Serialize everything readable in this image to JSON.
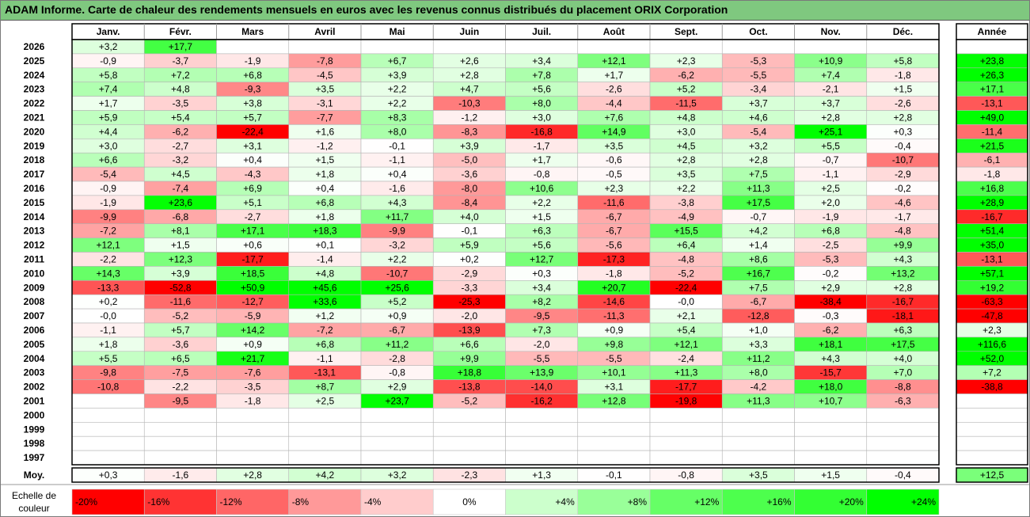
{
  "title": "ADAM Informe. Carte de chaleur des rendements mensuels en euros avec les revenus connus distribués du placement ORIX Corporation",
  "chart_data": {
    "type": "heatmap",
    "months": [
      "Janv.",
      "Févr.",
      "Mars",
      "Avril",
      "Mai",
      "Juin",
      "Juil.",
      "Août",
      "Sept.",
      "Oct.",
      "Nov.",
      "Déc."
    ],
    "year_header": "Année",
    "rows": [
      {
        "year": "2026",
        "values": [
          "+3,2",
          "+17,7",
          "",
          "",
          "",
          "",
          "",
          "",
          "",
          "",
          "",
          ""
        ],
        "annual": ""
      },
      {
        "year": "2025",
        "values": [
          "-0,9",
          "-3,7",
          "-1,9",
          "-7,8",
          "+6,7",
          "+2,6",
          "+3,4",
          "+12,1",
          "+2,3",
          "-5,3",
          "+10,9",
          "+5,8"
        ],
        "annual": "+23,8"
      },
      {
        "year": "2024",
        "values": [
          "+5,8",
          "+7,2",
          "+6,8",
          "-4,5",
          "+3,9",
          "+2,8",
          "+7,8",
          "+1,7",
          "-6,2",
          "-5,5",
          "+7,4",
          "-1,8"
        ],
        "annual": "+26,3"
      },
      {
        "year": "2023",
        "values": [
          "+7,4",
          "+4,8",
          "-9,3",
          "+3,5",
          "+2,2",
          "+4,7",
          "+5,6",
          "-2,6",
          "+5,2",
          "-3,4",
          "-2,1",
          "+1,5"
        ],
        "annual": "+17,1"
      },
      {
        "year": "2022",
        "values": [
          "+1,7",
          "-3,5",
          "+3,8",
          "-3,1",
          "+2,2",
          "-10,3",
          "+8,0",
          "-4,4",
          "-11,5",
          "+3,7",
          "+3,7",
          "-2,6"
        ],
        "annual": "-13,1"
      },
      {
        "year": "2021",
        "values": [
          "+5,9",
          "+5,4",
          "+5,7",
          "-7,7",
          "+8,3",
          "-1,2",
          "+3,0",
          "+7,6",
          "+4,8",
          "+4,6",
          "+2,8",
          "+2,8"
        ],
        "annual": "+49,0"
      },
      {
        "year": "2020",
        "values": [
          "+4,4",
          "-6,2",
          "-22,4",
          "+1,6",
          "+8,0",
          "-8,3",
          "-16,8",
          "+14,9",
          "+3,0",
          "-5,4",
          "+25,1",
          "+0,3"
        ],
        "annual": "-11,4"
      },
      {
        "year": "2019",
        "values": [
          "+3,0",
          "-2,7",
          "+3,1",
          "-1,2",
          "-0,1",
          "+3,9",
          "-1,7",
          "+3,5",
          "+4,5",
          "+3,2",
          "+5,5",
          "-0,4"
        ],
        "annual": "+21,5"
      },
      {
        "year": "2018",
        "values": [
          "+6,6",
          "-3,2",
          "+0,4",
          "+1,5",
          "-1,1",
          "-5,0",
          "+1,7",
          "-0,6",
          "+2,8",
          "+2,8",
          "-0,7",
          "-10,7"
        ],
        "annual": "-6,1"
      },
      {
        "year": "2017",
        "values": [
          "-5,4",
          "+4,5",
          "-4,3",
          "+1,8",
          "+0,4",
          "-3,6",
          "-0,8",
          "-0,5",
          "+3,5",
          "+7,5",
          "-1,1",
          "-2,9"
        ],
        "annual": "-1,8"
      },
      {
        "year": "2016",
        "values": [
          "-0,9",
          "-7,4",
          "+6,9",
          "+0,4",
          "-1,6",
          "-8,0",
          "+10,6",
          "+2,3",
          "+2,2",
          "+11,3",
          "+2,5",
          "-0,2"
        ],
        "annual": "+16,8"
      },
      {
        "year": "2015",
        "values": [
          "-1,9",
          "+23,6",
          "+5,1",
          "+6,8",
          "+4,3",
          "-8,4",
          "+2,2",
          "-11,6",
          "-3,8",
          "+17,5",
          "+2,0",
          "-4,6"
        ],
        "annual": "+28,9"
      },
      {
        "year": "2014",
        "values": [
          "-9,9",
          "-6,8",
          "-2,7",
          "+1,8",
          "+11,7",
          "+4,0",
          "+1,5",
          "-6,7",
          "-4,9",
          "-0,7",
          "-1,9",
          "-1,7"
        ],
        "annual": "-16,7"
      },
      {
        "year": "2013",
        "values": [
          "-7,2",
          "+8,1",
          "+17,1",
          "+18,3",
          "-9,9",
          "-0,1",
          "+6,3",
          "-6,7",
          "+15,5",
          "+4,2",
          "+6,8",
          "-4,8"
        ],
        "annual": "+51,4"
      },
      {
        "year": "2012",
        "values": [
          "+12,1",
          "+1,5",
          "+0,6",
          "+0,1",
          "-3,2",
          "+5,9",
          "+5,6",
          "-5,6",
          "+6,4",
          "+1,4",
          "-2,5",
          "+9,9"
        ],
        "annual": "+35,0"
      },
      {
        "year": "2011",
        "values": [
          "-2,2",
          "+12,3",
          "-17,7",
          "-1,4",
          "+2,2",
          "+0,2",
          "+12,7",
          "-17,3",
          "-4,8",
          "+8,6",
          "-5,3",
          "+4,3"
        ],
        "annual": "-13,1"
      },
      {
        "year": "2010",
        "values": [
          "+14,3",
          "+3,9",
          "+18,5",
          "+4,8",
          "-10,7",
          "-2,9",
          "+0,3",
          "-1,8",
          "-5,2",
          "+16,7",
          "-0,2",
          "+13,2"
        ],
        "annual": "+57,1"
      },
      {
        "year": "2009",
        "values": [
          "-13,3",
          "-52,8",
          "+50,9",
          "+45,6",
          "+25,6",
          "-3,3",
          "+3,4",
          "+20,7",
          "-22,4",
          "+7,5",
          "+2,9",
          "+2,8"
        ],
        "annual": "+19,2"
      },
      {
        "year": "2008",
        "values": [
          "+0,2",
          "-11,6",
          "-12,7",
          "+33,6",
          "+5,2",
          "-25,3",
          "+8,2",
          "-14,6",
          "-0,0",
          "-6,7",
          "-38,4",
          "-16,7"
        ],
        "annual": "-63,3"
      },
      {
        "year": "2007",
        "values": [
          "-0,0",
          "-5,2",
          "-5,9",
          "+1,2",
          "+0,9",
          "-2,0",
          "-9,5",
          "-11,3",
          "+2,1",
          "-12,8",
          "-0,3",
          "-18,1"
        ],
        "annual": "-47,8"
      },
      {
        "year": "2006",
        "values": [
          "-1,1",
          "+5,7",
          "+14,2",
          "-7,2",
          "-6,7",
          "-13,9",
          "+7,3",
          "+0,9",
          "+5,4",
          "+1,0",
          "-6,2",
          "+6,3"
        ],
        "annual": "+2,3"
      },
      {
        "year": "2005",
        "values": [
          "+1,8",
          "-3,6",
          "+0,9",
          "+6,8",
          "+11,2",
          "+6,6",
          "-2,0",
          "+9,8",
          "+12,1",
          "+3,3",
          "+18,1",
          "+17,5"
        ],
        "annual": "+116,6"
      },
      {
        "year": "2004",
        "values": [
          "+5,5",
          "+6,5",
          "+21,7",
          "-1,1",
          "-2,8",
          "+9,9",
          "-5,5",
          "-5,5",
          "-2,4",
          "+11,2",
          "+4,3",
          "+4,0"
        ],
        "annual": "+52,0"
      },
      {
        "year": "2003",
        "values": [
          "-9,8",
          "-7,5",
          "-7,6",
          "-13,1",
          "-0,8",
          "+18,8",
          "+13,9",
          "+10,1",
          "+11,3",
          "+8,0",
          "-15,7",
          "+7,0"
        ],
        "annual": "+7,2"
      },
      {
        "year": "2002",
        "values": [
          "-10,8",
          "-2,2",
          "-3,5",
          "+8,7",
          "+2,9",
          "-13,8",
          "-14,0",
          "+3,1",
          "-17,7",
          "-4,2",
          "+18,0",
          "-8,8"
        ],
        "annual": "-38,8"
      },
      {
        "year": "2001",
        "values": [
          "",
          "-9,5",
          "-1,8",
          "+2,5",
          "+23,7",
          "-5,2",
          "-16,2",
          "+12,8",
          "-19,8",
          "+11,3",
          "+10,7",
          "-6,3"
        ],
        "annual": ""
      },
      {
        "year": "2000",
        "values": [
          "",
          "",
          "",
          "",
          "",
          "",
          "",
          "",
          "",
          "",
          "",
          ""
        ],
        "annual": ""
      },
      {
        "year": "1999",
        "values": [
          "",
          "",
          "",
          "",
          "",
          "",
          "",
          "",
          "",
          "",
          "",
          ""
        ],
        "annual": ""
      },
      {
        "year": "1998",
        "values": [
          "",
          "",
          "",
          "",
          "",
          "",
          "",
          "",
          "",
          "",
          "",
          ""
        ],
        "annual": ""
      },
      {
        "year": "1997",
        "values": [
          "",
          "",
          "",
          "",
          "",
          "",
          "",
          "",
          "",
          "",
          "",
          ""
        ],
        "annual": ""
      }
    ],
    "average": {
      "label": "Moy.",
      "values": [
        "+0,3",
        "-1,6",
        "+2,8",
        "+4,2",
        "+3,2",
        "-2,3",
        "+1,3",
        "-0,1",
        "-0,8",
        "+3,5",
        "+1,5",
        "-0,4"
      ],
      "annual": "+12,5"
    },
    "color_scale": {
      "label": [
        "Echelle de",
        "couleur"
      ],
      "stops": [
        {
          "label": "-20%",
          "value": -20,
          "color": "#ff0000"
        },
        {
          "label": "-16%",
          "value": -16,
          "color": "#ff3333"
        },
        {
          "label": "-12%",
          "value": -12,
          "color": "#ff6666"
        },
        {
          "label": "-8%",
          "value": -8,
          "color": "#ff9999"
        },
        {
          "label": "-4%",
          "value": -4,
          "color": "#ffcccc"
        },
        {
          "label": "0%",
          "value": 0,
          "color": "#ffffff"
        },
        {
          "label": "+4%",
          "value": 4,
          "color": "#ccffcc"
        },
        {
          "label": "+8%",
          "value": 8,
          "color": "#99ff99"
        },
        {
          "label": "+12%",
          "value": 12,
          "color": "#66ff66"
        },
        {
          "label": "+16%",
          "value": 16,
          "color": "#4dff4d"
        },
        {
          "label": "+20%",
          "value": 20,
          "color": "#33ff33"
        },
        {
          "label": "+24%",
          "value": 24,
          "color": "#00ff00"
        }
      ]
    }
  },
  "colors": {
    "title_bar": "#7fc87f",
    "negative_max": "#ff0000",
    "positive_max": "#00ff00",
    "neutral": "#ffffff"
  }
}
